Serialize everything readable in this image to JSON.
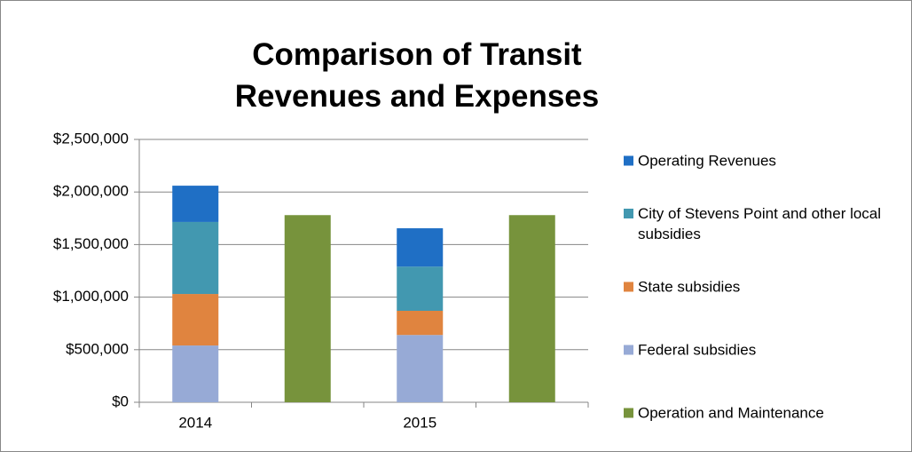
{
  "chart_data": {
    "type": "bar",
    "stacked": true,
    "title": "Comparison of Transit Revenues and Expenses",
    "categories": [
      "2014",
      null,
      "2015",
      null
    ],
    "series": [
      {
        "name": "Operating Revenues",
        "color": "#1f6fc5",
        "values": [
          345000,
          null,
          365000,
          null
        ]
      },
      {
        "name": "City of Stevens Point and other local subsidies",
        "color": "#4298b0",
        "values": [
          685000,
          null,
          420000,
          null
        ]
      },
      {
        "name": "State subsidies",
        "color": "#e0843f",
        "values": [
          490000,
          null,
          230000,
          null
        ]
      },
      {
        "name": "Federal subsidies",
        "color": "#97aad6",
        "values": [
          540000,
          null,
          640000,
          null
        ]
      },
      {
        "name": "Operation and Maintenance",
        "color": "#77933c",
        "values": [
          null,
          1780000,
          null,
          1780000
        ]
      }
    ],
    "ylim": [
      0,
      2500000
    ],
    "yticks": [
      {
        "value": 0,
        "label": "$0"
      },
      {
        "value": 500000,
        "label": "$500,000"
      },
      {
        "value": 1000000,
        "label": "$1,000,000"
      },
      {
        "value": 1500000,
        "label": "$1,500,000"
      },
      {
        "value": 2000000,
        "label": "$2,000,000"
      },
      {
        "value": 2500000,
        "label": "$2,500,000"
      }
    ],
    "grid": true,
    "legend": "right"
  }
}
